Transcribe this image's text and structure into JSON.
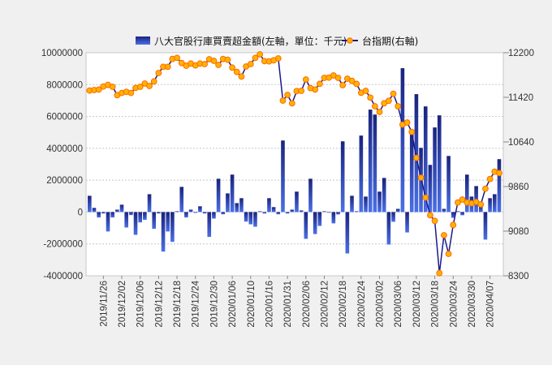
{
  "chart_data": {
    "type": "bar+line",
    "legend_position": "top",
    "grid": true,
    "series": [
      {
        "name": "八大官股行庫買賣超金額(左軸，單位：千元)",
        "type": "bar",
        "axis": "left",
        "color": "#1a237e",
        "color_light": "#4a6fe6",
        "values": [
          1020000,
          260000,
          -340000,
          -90000,
          -1220000,
          -340000,
          150000,
          460000,
          -970000,
          -190000,
          -1430000,
          -650000,
          -490000,
          1120000,
          -1050000,
          -90000,
          -2480000,
          -1220000,
          -1870000,
          50000,
          1580000,
          -340000,
          150000,
          -50000,
          360000,
          -90000,
          -1560000,
          -410000,
          2090000,
          -140000,
          1170000,
          2350000,
          560000,
          870000,
          -600000,
          -770000,
          -920000,
          50000,
          -90000,
          870000,
          310000,
          -140000,
          4490000,
          -90000,
          150000,
          1280000,
          100000,
          -1680000,
          2090000,
          -1380000,
          -870000,
          50000,
          -30000,
          -710000,
          -150000,
          4440000,
          -2600000,
          1020000,
          50000,
          4800000,
          970000,
          6430000,
          6120000,
          1280000,
          2140000,
          -2040000,
          -610000,
          200000,
          9030000,
          -1280000,
          4950000,
          7400000,
          4030000,
          6630000,
          2960000,
          5310000,
          6070000,
          200000,
          3520000,
          -360000,
          50000,
          -200000,
          2350000,
          970000,
          1630000,
          400000,
          -1730000,
          870000,
          1120000,
          3320000
        ]
      },
      {
        "name": "台指期(右軸)",
        "type": "line",
        "axis": "right",
        "color": "#1a1a8c",
        "marker_color": "#ffb300",
        "marker_edge": "#ff6a00",
        "values": [
          11538,
          11548,
          11557,
          11609,
          11637,
          11604,
          11458,
          11496,
          11515,
          11496,
          11585,
          11604,
          11661,
          11619,
          11699,
          11845,
          11954,
          11954,
          12091,
          12110,
          12020,
          11973,
          12011,
          11978,
          12011,
          12001,
          12087,
          12058,
          11987,
          12091,
          12077,
          11940,
          11864,
          11784,
          11959,
          12001,
          12110,
          12172,
          12053,
          12049,
          12068,
          12101,
          11363,
          11463,
          11316,
          11529,
          11533,
          11732,
          11581,
          11557,
          11656,
          11760,
          11765,
          11803,
          11760,
          11633,
          11746,
          11708,
          11656,
          11500,
          11533,
          11415,
          11264,
          11165,
          11316,
          11359,
          11482,
          11264,
          10943,
          10980,
          10815,
          10361,
          10016,
          9666,
          9359,
          9260,
          8347,
          9009,
          8683,
          9189,
          9581,
          9633,
          9581,
          9567,
          9591,
          9548,
          9822,
          9992,
          10120,
          10096
        ]
      }
    ],
    "x_tick_labels": [
      "2019/11/26",
      "2019/12/02",
      "2019/12/06",
      "2019/12/12",
      "2019/12/18",
      "2019/12/24",
      "2019/12/30",
      "2020/01/06",
      "2020/01/10",
      "2020/01/16",
      "2020/01/31",
      "2020/02/06",
      "2020/02/12",
      "2020/02/18",
      "2020/02/24",
      "2020/03/02",
      "2020/03/06",
      "2020/03/12",
      "2020/03/18",
      "2020/03/24",
      "2020/03/30",
      "2020/04/07"
    ],
    "y_left": {
      "ylim": [
        -4000000,
        10000000
      ],
      "ticks": [
        "10000000",
        "8000000",
        "6000000",
        "4000000",
        "2000000",
        "0",
        "-2000000",
        "-4000000"
      ]
    },
    "y_right": {
      "ylim": [
        8300,
        12200
      ],
      "ticks": [
        "12200",
        "11420",
        "10640",
        "9860",
        "9080",
        "8300"
      ]
    }
  }
}
